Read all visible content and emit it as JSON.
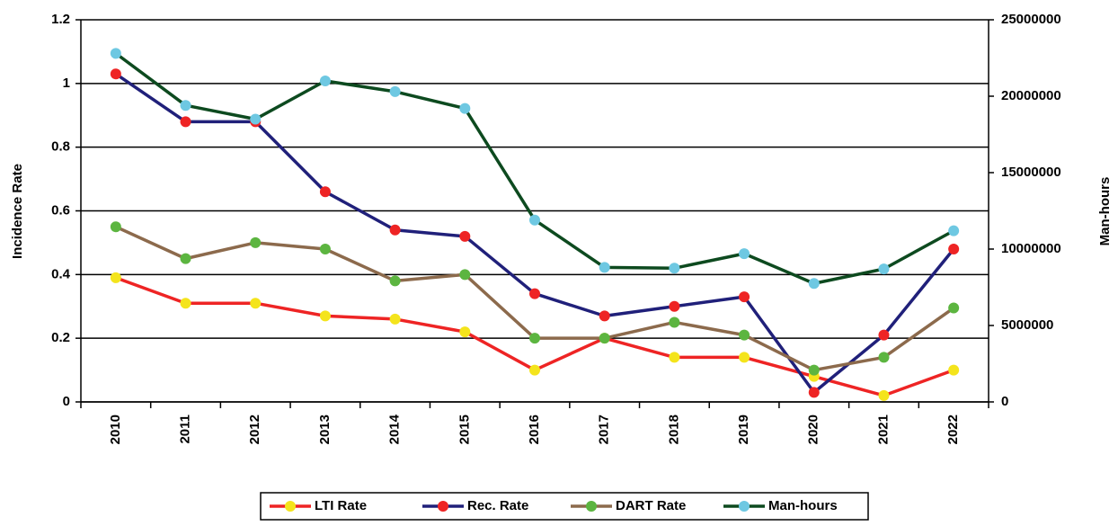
{
  "chart_data": {
    "type": "line",
    "categories": [
      "2010",
      "2011",
      "2012",
      "2013",
      "2014",
      "2015",
      "2016",
      "2017",
      "2018",
      "2019",
      "2020",
      "2021",
      "2022"
    ],
    "series": [
      {
        "name": "LTI Rate",
        "color": "#ee2424",
        "marker_color": "#f4e41c",
        "values": [
          0.39,
          0.31,
          0.31,
          0.27,
          0.26,
          0.22,
          0.1,
          0.2,
          0.14,
          0.14,
          0.08,
          0.02,
          0.1
        ]
      },
      {
        "name": "Rec. Rate",
        "color": "#20207a",
        "marker_color": "#ee2424",
        "values": [
          1.03,
          0.88,
          0.88,
          0.66,
          0.54,
          0.52,
          0.34,
          0.27,
          0.3,
          0.33,
          0.03,
          0.21,
          0.48
        ]
      },
      {
        "name": "DART Rate",
        "color": "#8c6a4c",
        "marker_color": "#5cb540",
        "values": [
          0.55,
          0.45,
          0.5,
          0.48,
          0.38,
          0.4,
          0.2,
          0.2,
          0.25,
          0.21,
          0.1,
          0.14,
          0.295
        ]
      },
      {
        "name": "Man-hours",
        "color": "#0d4a1f",
        "marker_color": "#6ec8e2",
        "axis": "y2",
        "values": [
          22800000,
          19400000,
          18500000,
          21000000,
          20300000,
          19200000,
          11900000,
          8800000,
          8750000,
          9700000,
          7750000,
          8700000,
          11200000
        ]
      }
    ],
    "y_label": "Incidence Rate",
    "y2_label": "Man-hours",
    "ylim": [
      0,
      1.2
    ],
    "yticks": [
      0,
      0.2,
      0.4,
      0.6,
      0.8,
      1,
      1.2
    ],
    "y2lim": [
      0,
      25000000
    ],
    "y2ticks": [
      0,
      5000000,
      10000000,
      15000000,
      20000000,
      25000000
    ],
    "grid": true,
    "legend": "bottom"
  }
}
